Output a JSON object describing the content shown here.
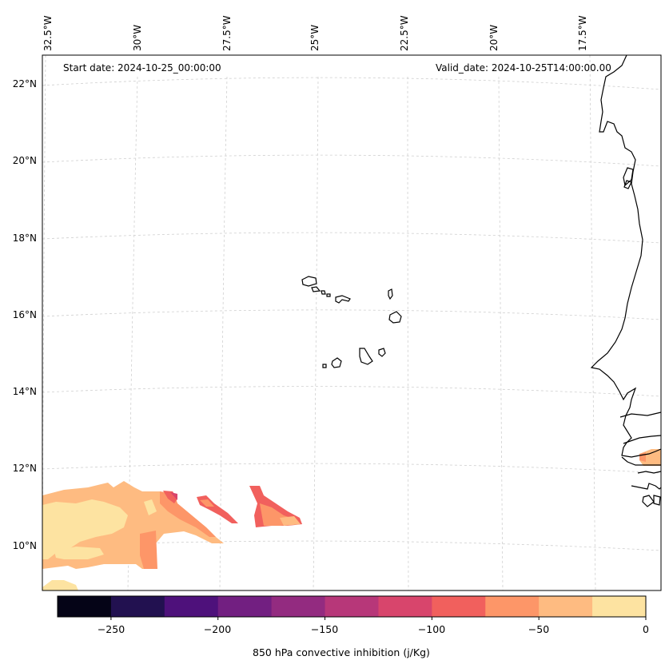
{
  "map": {
    "start_date": "Start date: 2024-10-25_00:00:00",
    "valid_date": "Valid_date: 2024-10-25T14:00:00.00",
    "longitude_labels": [
      "32.5°W",
      "30°W",
      "27.5°W",
      "25°W",
      "22.5°W",
      "20°W",
      "17.5°W"
    ],
    "latitude_labels": [
      "22°N",
      "20°N",
      "18°N",
      "16°N",
      "14°N",
      "12°N",
      "10°N"
    ],
    "extent": {
      "lon_min": -33.0,
      "lon_max": -16.0,
      "lat_min": 8.8,
      "lat_max": 22.8
    },
    "projection": "conic-like, gridlines curved",
    "gridlines": "dashed light gray",
    "coastlines": "black",
    "field": "850 hPa convective inhibition, filled contours in lower-left and near Senegal/Gambia coast"
  },
  "colorbar": {
    "label": "850 hPa convective inhibition (j/Kg)",
    "tick_labels": [
      "−250",
      "−200",
      "−150",
      "−100",
      "−50",
      "0"
    ],
    "levels": [
      -275,
      -250,
      -225,
      -200,
      -175,
      -150,
      -125,
      -100,
      -75,
      -50,
      -25,
      0
    ],
    "colors": [
      "#050417",
      "#221150",
      "#4e117b",
      "#721f81",
      "#932b80",
      "#b73779",
      "#d8456c",
      "#f1605d",
      "#fd9668",
      "#febb81",
      "#fde3a1"
    ]
  }
}
